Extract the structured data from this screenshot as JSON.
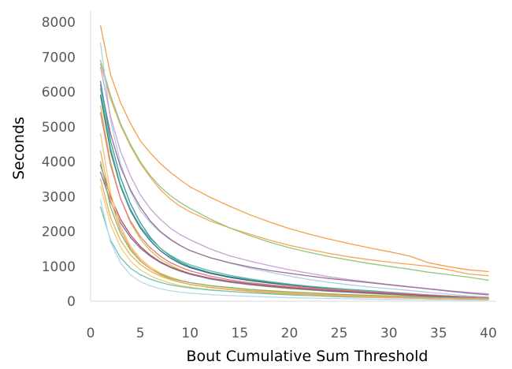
{
  "chart_data": {
    "type": "line",
    "title": "",
    "xlabel": "Bout Cumulative Sum Threshold",
    "ylabel": "Seconds",
    "x": [
      1,
      2,
      3,
      4,
      5,
      6,
      7,
      8,
      9,
      10,
      12,
      14,
      16,
      18,
      20,
      22,
      24,
      26,
      28,
      30,
      32,
      34,
      36,
      38,
      40
    ],
    "xlim": [
      0,
      40
    ],
    "ylim": [
      0,
      8000
    ],
    "x_ticks": [
      "0",
      "5",
      "10",
      "15",
      "20",
      "25",
      "30",
      "35",
      "40"
    ],
    "y_ticks": [
      "0",
      "1000",
      "2000",
      "3000",
      "4000",
      "5000",
      "6000",
      "7000",
      "8000"
    ],
    "grid": false,
    "legend": "none",
    "series": [
      {
        "color": "#f4a04a",
        "values": [
          7900,
          6500,
          5700,
          5100,
          4600,
          4250,
          3950,
          3700,
          3480,
          3280,
          2980,
          2720,
          2480,
          2270,
          2080,
          1920,
          1780,
          1650,
          1530,
          1420,
          1300,
          1100,
          990,
          900,
          850
        ]
      },
      {
        "color": "#f6a55c",
        "values": [
          6800,
          5800,
          5050,
          4450,
          3950,
          3550,
          3200,
          2930,
          2720,
          2560,
          2300,
          2100,
          1920,
          1750,
          1600,
          1480,
          1370,
          1270,
          1190,
          1120,
          1060,
          1000,
          900,
          780,
          730
        ]
      },
      {
        "color": "#8ec97a",
        "values": [
          6900,
          5900,
          5100,
          4500,
          4000,
          3600,
          3280,
          3030,
          2830,
          2660,
          2360,
          2100,
          1880,
          1690,
          1530,
          1400,
          1280,
          1180,
          1080,
          1000,
          920,
          830,
          760,
          690,
          600
        ]
      },
      {
        "color": "#a9cfe6",
        "values": [
          7400,
          5200,
          3950,
          3150,
          2600,
          2250,
          1980,
          1760,
          1590,
          1450,
          1250,
          1090,
          950,
          830,
          720,
          620,
          540,
          470,
          410,
          360,
          310,
          250,
          200,
          150,
          120
        ]
      },
      {
        "color": "#c8a2d6",
        "values": [
          6700,
          5300,
          4300,
          3600,
          3050,
          2650,
          2350,
          2100,
          1910,
          1760,
          1500,
          1300,
          1150,
          1020,
          900,
          800,
          700,
          620,
          550,
          480,
          420,
          360,
          300,
          250,
          210
        ]
      },
      {
        "color": "#9e6e93",
        "values": [
          6200,
          4800,
          3850,
          3200,
          2700,
          2300,
          2000,
          1780,
          1600,
          1450,
          1250,
          1100,
          980,
          880,
          800,
          720,
          650,
          590,
          530,
          470,
          410,
          350,
          290,
          230,
          180
        ]
      },
      {
        "color": "#3b95a6",
        "values": [
          6300,
          4600,
          3550,
          2800,
          2250,
          1830,
          1520,
          1290,
          1120,
          990,
          820,
          700,
          610,
          540,
          480,
          430,
          380,
          340,
          300,
          260,
          220,
          180,
          150,
          120,
          100
        ]
      },
      {
        "color": "#2f6f7f",
        "values": [
          5900,
          4300,
          3300,
          2600,
          2100,
          1730,
          1450,
          1240,
          1080,
          960,
          800,
          680,
          590,
          520,
          460,
          410,
          360,
          320,
          280,
          240,
          200,
          170,
          140,
          110,
          90
        ]
      },
      {
        "color": "#5fb7a0",
        "values": [
          6100,
          4400,
          3350,
          2650,
          2150,
          1790,
          1520,
          1320,
          1160,
          1040,
          870,
          740,
          640,
          560,
          490,
          430,
          380,
          330,
          290,
          250,
          210,
          180,
          150,
          120,
          100
        ]
      },
      {
        "color": "#d5c441",
        "values": [
          5600,
          4000,
          2950,
          2250,
          1780,
          1450,
          1210,
          1040,
          900,
          790,
          640,
          540,
          470,
          410,
          360,
          320,
          280,
          250,
          220,
          190,
          160,
          140,
          120,
          100,
          80
        ]
      },
      {
        "color": "#e07a88",
        "values": [
          5400,
          3900,
          2950,
          2300,
          1850,
          1530,
          1290,
          1110,
          980,
          870,
          720,
          610,
          530,
          470,
          420,
          380,
          340,
          300,
          270,
          240,
          210,
          180,
          150,
          120,
          100
        ]
      },
      {
        "color": "#c0504d",
        "values": [
          3900,
          3000,
          2350,
          1900,
          1570,
          1320,
          1130,
          990,
          880,
          790,
          660,
          570,
          500,
          440,
          390,
          350,
          310,
          280,
          250,
          220,
          190,
          160,
          130,
          100,
          80
        ]
      },
      {
        "color": "#7f6fa8",
        "values": [
          3700,
          2850,
          2250,
          1830,
          1520,
          1290,
          1110,
          970,
          860,
          770,
          640,
          550,
          480,
          420,
          370,
          330,
          290,
          260,
          230,
          200,
          170,
          140,
          120,
          100,
          80
        ]
      },
      {
        "color": "#f2c46d",
        "values": [
          4800,
          3100,
          2150,
          1580,
          1220,
          980,
          810,
          690,
          600,
          530,
          440,
          380,
          330,
          290,
          260,
          230,
          200,
          180,
          160,
          140,
          120,
          100,
          90,
          80,
          70
        ]
      },
      {
        "color": "#86b36f",
        "values": [
          4000,
          2700,
          1950,
          1470,
          1150,
          930,
          780,
          670,
          590,
          530,
          450,
          390,
          340,
          300,
          270,
          240,
          210,
          190,
          170,
          150,
          130,
          110,
          100,
          90,
          80
        ]
      },
      {
        "color": "#e6b35a",
        "values": [
          3500,
          2400,
          1750,
          1330,
          1050,
          860,
          720,
          620,
          540,
          480,
          400,
          340,
          300,
          260,
          230,
          200,
          180,
          160,
          140,
          120,
          100,
          90,
          80,
          70,
          60
        ]
      },
      {
        "color": "#ead27a",
        "values": [
          3300,
          2200,
          1550,
          1150,
          900,
          730,
          610,
          520,
          450,
          400,
          330,
          280,
          240,
          210,
          180,
          160,
          140,
          120,
          110,
          100,
          90,
          80,
          70,
          60,
          50
        ]
      },
      {
        "color": "#6cc3b5",
        "values": [
          2700,
          1750,
          1250,
          950,
          760,
          630,
          540,
          470,
          420,
          380,
          320,
          280,
          240,
          210,
          180,
          160,
          140,
          120,
          110,
          100,
          90,
          80,
          70,
          60,
          50
        ]
      },
      {
        "color": "#b9d8ea",
        "values": [
          2900,
          1700,
          1100,
          760,
          560,
          440,
          360,
          300,
          260,
          230,
          190,
          160,
          140,
          120,
          100,
          90,
          80,
          70,
          60,
          50,
          45,
          40,
          35,
          30,
          30
        ]
      },
      {
        "color": "#f0a860",
        "values": [
          4300,
          2900,
          2050,
          1520,
          1170,
          930,
          760,
          640,
          550,
          480,
          390,
          330,
          280,
          240,
          210,
          180,
          160,
          140,
          120,
          100,
          90,
          80,
          70,
          60,
          50
        ]
      }
    ]
  }
}
